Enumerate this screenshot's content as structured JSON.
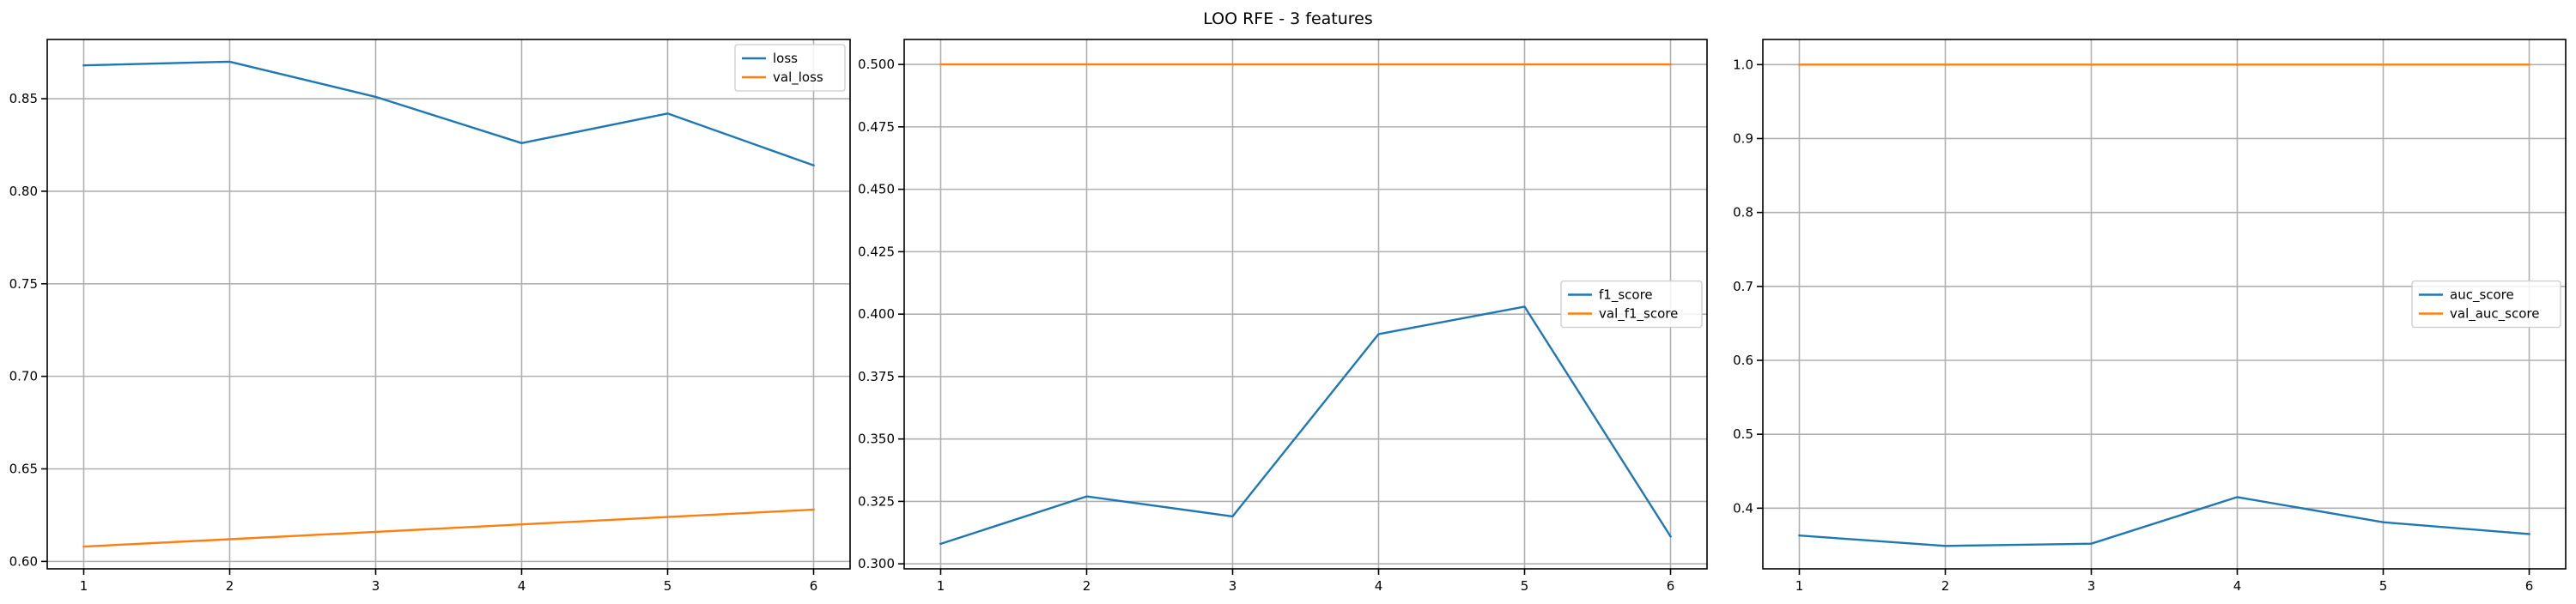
{
  "figure": {
    "suptitle": "LOO RFE - 3 features"
  },
  "colors": {
    "blue": "#1f77b4",
    "orange": "#ff7f0e",
    "grid": "#b0b0b0"
  },
  "chart_data": [
    {
      "type": "line",
      "title": "",
      "xlabel": "",
      "ylabel": "",
      "grid": true,
      "legend_placement": "upper right",
      "xlim": [
        0.75,
        6.25
      ],
      "ylim": [
        0.596,
        0.882
      ],
      "xticks": [
        1,
        2,
        3,
        4,
        5,
        6
      ],
      "xtick_labels": [
        "1",
        "2",
        "3",
        "4",
        "5",
        "6"
      ],
      "yticks": [
        0.6,
        0.65,
        0.7,
        0.75,
        0.8,
        0.85
      ],
      "ytick_labels": [
        "0.60",
        "0.65",
        "0.70",
        "0.75",
        "0.80",
        "0.85"
      ],
      "x": [
        1,
        2,
        3,
        4,
        5,
        6
      ],
      "series": [
        {
          "name": "loss",
          "color": "#1f77b4",
          "values": [
            0.868,
            0.87,
            0.851,
            0.826,
            0.842,
            0.814
          ]
        },
        {
          "name": "val_loss",
          "color": "#ff7f0e",
          "values": [
            0.608,
            0.612,
            0.616,
            0.62,
            0.624,
            0.628
          ]
        }
      ]
    },
    {
      "type": "line",
      "title": "",
      "xlabel": "",
      "ylabel": "",
      "grid": true,
      "legend_placement": "center right",
      "xlim": [
        0.75,
        6.25
      ],
      "ylim": [
        0.298,
        0.51
      ],
      "xticks": [
        1,
        2,
        3,
        4,
        5,
        6
      ],
      "xtick_labels": [
        "1",
        "2",
        "3",
        "4",
        "5",
        "6"
      ],
      "yticks": [
        0.3,
        0.325,
        0.35,
        0.375,
        0.4,
        0.425,
        0.45,
        0.475,
        0.5
      ],
      "ytick_labels": [
        "0.300",
        "0.325",
        "0.350",
        "0.375",
        "0.400",
        "0.425",
        "0.450",
        "0.475",
        "0.500"
      ],
      "x": [
        1,
        2,
        3,
        4,
        5,
        6
      ],
      "series": [
        {
          "name": "f1_score",
          "color": "#1f77b4",
          "values": [
            0.308,
            0.327,
            0.319,
            0.392,
            0.403,
            0.311
          ]
        },
        {
          "name": "val_f1_score",
          "color": "#ff7f0e",
          "values": [
            0.5,
            0.5,
            0.5,
            0.5,
            0.5,
            0.5
          ]
        }
      ]
    },
    {
      "type": "line",
      "title": "",
      "xlabel": "",
      "ylabel": "",
      "grid": true,
      "legend_placement": "center right",
      "xlim": [
        0.75,
        6.25
      ],
      "ylim": [
        0.318,
        1.034
      ],
      "xticks": [
        1,
        2,
        3,
        4,
        5,
        6
      ],
      "xtick_labels": [
        "1",
        "2",
        "3",
        "4",
        "5",
        "6"
      ],
      "yticks": [
        0.4,
        0.5,
        0.6,
        0.7,
        0.8,
        0.9,
        1.0
      ],
      "ytick_labels": [
        "0.4",
        "0.5",
        "0.6",
        "0.7",
        "0.8",
        "0.9",
        "1.0"
      ],
      "x": [
        1,
        2,
        3,
        4,
        5,
        6
      ],
      "series": [
        {
          "name": "auc_score",
          "color": "#1f77b4",
          "values": [
            0.363,
            0.349,
            0.352,
            0.415,
            0.381,
            0.365
          ]
        },
        {
          "name": "val_auc_score",
          "color": "#ff7f0e",
          "values": [
            1.0,
            1.0,
            1.0,
            1.0,
            1.0,
            1.0
          ]
        }
      ]
    }
  ]
}
